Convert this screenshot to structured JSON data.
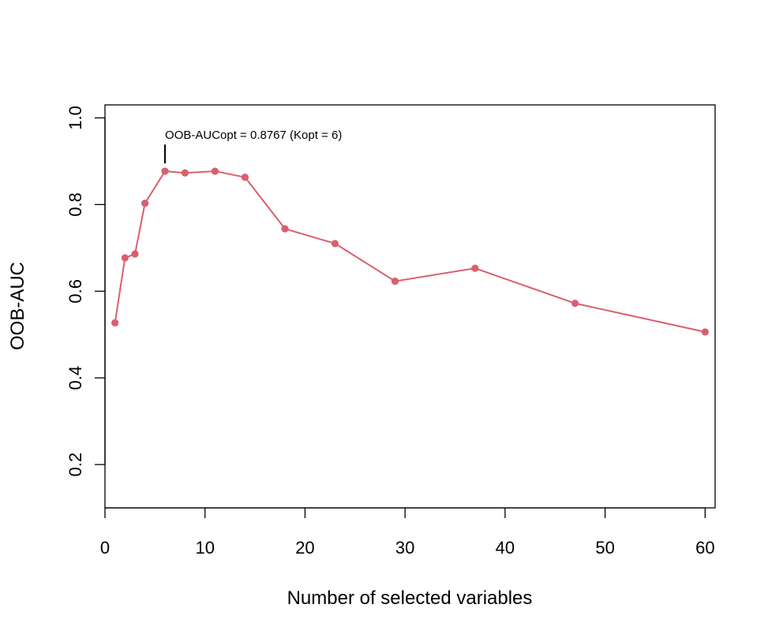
{
  "chart_data": {
    "type": "line",
    "xlabel": "Number of selected variables",
    "ylabel": "OOB-AUC",
    "xlim": [
      0,
      61
    ],
    "ylim": [
      0.1,
      1.03
    ],
    "x_ticks": [
      0,
      10,
      20,
      30,
      40,
      50,
      60
    ],
    "y_ticks": [
      0.2,
      0.4,
      0.6,
      0.8,
      1.0
    ],
    "x_tick_labels": [
      "0",
      "10",
      "20",
      "30",
      "40",
      "50",
      "60"
    ],
    "y_tick_labels": [
      "0.2",
      "0.4",
      "0.6",
      "0.8",
      "1.0"
    ],
    "grid": false,
    "color": "#d95f6e",
    "series": [
      {
        "x": [
          1,
          2,
          3,
          4,
          6,
          8,
          11,
          14,
          18,
          23,
          29,
          37,
          47,
          60
        ],
        "y": [
          0.527,
          0.677,
          0.686,
          0.803,
          0.877,
          0.873,
          0.877,
          0.863,
          0.744,
          0.71,
          0.623,
          0.653,
          0.572,
          0.506
        ]
      }
    ],
    "annotation": {
      "text": "OOB-AUCopt = 0.8767 (Kopt = 6)",
      "x": 6,
      "y": 0.8767
    }
  }
}
